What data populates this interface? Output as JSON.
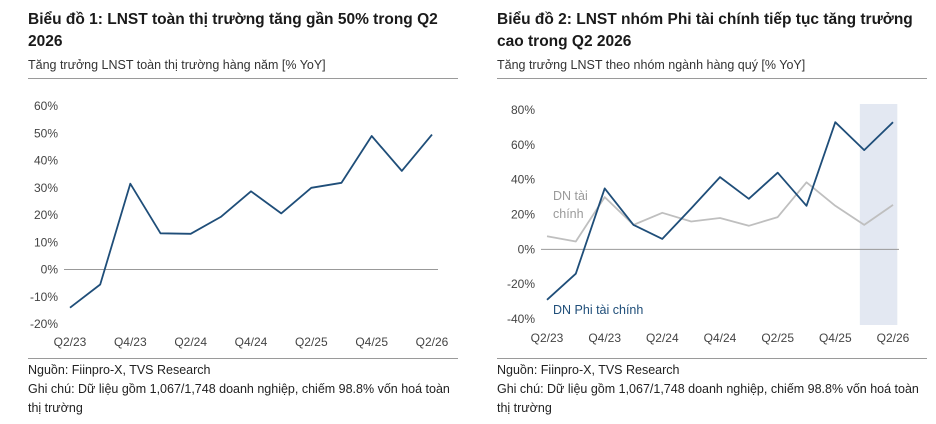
{
  "chart_data": [
    {
      "type": "line",
      "title": "Biểu đồ 1: LNST toàn thị trường tăng gần 50% trong Q2 2026",
      "subtitle": "Tăng trưởng LNST toàn thị trường hàng năm [% YoY]",
      "x": [
        "Q2/23",
        "Q3/23",
        "Q4/23",
        "Q1/24",
        "Q2/24",
        "Q3/24",
        "Q4/24",
        "Q1/25",
        "Q2/25",
        "Q3/25",
        "Q4/25",
        "Q1/26",
        "Q2/26"
      ],
      "x_tick_labels": [
        "Q2/23",
        "Q4/23",
        "Q2/24",
        "Q4/24",
        "Q2/25",
        "Q4/25",
        "Q2/26"
      ],
      "series": [
        {
          "values": [
            -14,
            -5.5,
            31.5,
            13.3,
            13.1,
            19.3,
            28.7,
            20.6,
            30,
            31.8,
            49,
            36.2,
            49.5
          ],
          "color": "#1f4e79"
        }
      ],
      "ylim": [
        -20,
        60
      ],
      "y_tick_labels": [
        "60%",
        "50%",
        "40%",
        "30%",
        "20%",
        "10%",
        "0%",
        "-10%",
        "-20%"
      ],
      "grid": false,
      "source": "Nguồn: Fiinpro-X, TVS Research",
      "note": "Ghi chú: Dữ liệu gồm 1,067/1,748 doanh nghiệp, chiếm 98.8% vốn hoá toàn thị trường"
    },
    {
      "type": "line",
      "title": "Biểu đồ 2: LNST nhóm Phi tài chính tiếp tục tăng trưởng cao trong Q2 2026",
      "subtitle": "Tăng trưởng LNST theo nhóm ngành hàng quý [% YoY]",
      "x": [
        "Q2/23",
        "Q3/23",
        "Q4/23",
        "Q1/24",
        "Q2/24",
        "Q3/24",
        "Q4/24",
        "Q1/25",
        "Q2/25",
        "Q3/25",
        "Q4/25",
        "Q1/26",
        "Q2/26"
      ],
      "x_tick_labels": [
        "Q2/23",
        "Q4/23",
        "Q2/24",
        "Q4/24",
        "Q2/25",
        "Q4/25",
        "Q2/26"
      ],
      "series": [
        {
          "name": "DN Phi tài chính",
          "values": [
            -29,
            -14,
            35,
            14,
            6,
            23.5,
            41.5,
            29,
            44,
            25,
            73,
            57,
            73
          ],
          "color": "#1f4e79"
        },
        {
          "name": "DN tài chính",
          "values": [
            7.5,
            4.5,
            30,
            14,
            21,
            16,
            18,
            13.5,
            18.5,
            38.5,
            25,
            14,
            25.5
          ],
          "color": "#bfbfbf"
        }
      ],
      "ylim": [
        -40,
        80
      ],
      "y_tick_labels": [
        "80%",
        "60%",
        "40%",
        "20%",
        "0%",
        "-20%",
        "-40%"
      ],
      "highlight_range": [
        "Q1/26",
        "Q2/26"
      ],
      "highlight_color": "#e3e8f2",
      "grid": false,
      "source": "Nguồn: Fiinpro-X, TVS Research",
      "note": "Ghi chú: Dữ liệu gồm 1,067/1,748 doanh nghiệp, chiếm 98.8% vốn hoá toàn thị trường"
    }
  ]
}
